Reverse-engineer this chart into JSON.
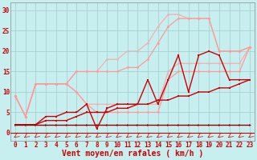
{
  "background_color": "#c8efef",
  "grid_color": "#a8d0d0",
  "xlabel": "Vent moyen/en rafales ( km/h )",
  "xlabel_color": "#cc0000",
  "xlabel_fontsize": 7,
  "tick_color": "#cc0000",
  "tick_fontsize": 5.5,
  "ylim": [
    -2,
    32
  ],
  "xlim": [
    -0.5,
    23.5
  ],
  "yticks": [
    0,
    5,
    10,
    15,
    20,
    25,
    30
  ],
  "xticks": [
    0,
    1,
    2,
    3,
    4,
    5,
    6,
    7,
    8,
    9,
    10,
    11,
    12,
    13,
    14,
    15,
    16,
    17,
    18,
    19,
    20,
    21,
    22,
    23
  ],
  "series": [
    {
      "x": [
        0,
        1,
        2,
        3,
        4,
        5,
        6,
        7,
        8,
        9,
        10,
        11,
        12,
        13,
        14,
        15,
        16,
        17,
        18,
        19,
        20,
        21,
        22,
        23
      ],
      "y": [
        9,
        4,
        12,
        12,
        12,
        12,
        15,
        15,
        15,
        18,
        18,
        20,
        20,
        22,
        26,
        29,
        29,
        28,
        28,
        28,
        20,
        20,
        20,
        21
      ],
      "color": "#ffaaaa",
      "lw": 0.9,
      "marker": "D",
      "ms": 1.8,
      "zorder": 1
    },
    {
      "x": [
        0,
        1,
        2,
        3,
        4,
        5,
        6,
        7,
        8,
        9,
        10,
        11,
        12,
        13,
        14,
        15,
        16,
        17,
        18,
        19,
        20,
        21,
        22,
        23
      ],
      "y": [
        9,
        4,
        12,
        12,
        12,
        12,
        10,
        7,
        7,
        7,
        7,
        7,
        7,
        7,
        7,
        15,
        17,
        17,
        17,
        17,
        17,
        17,
        17,
        21
      ],
      "color": "#ffaaaa",
      "lw": 0.9,
      "marker": "D",
      "ms": 1.8,
      "zorder": 1
    },
    {
      "x": [
        0,
        1,
        2,
        3,
        4,
        5,
        6,
        7,
        8,
        9,
        10,
        11,
        12,
        13,
        14,
        15,
        16,
        17,
        18,
        19,
        20,
        21,
        22,
        23
      ],
      "y": [
        9,
        4,
        12,
        12,
        12,
        12,
        15,
        15,
        15,
        15,
        15,
        16,
        16,
        18,
        22,
        26,
        28,
        28,
        28,
        28,
        20,
        20,
        20,
        21
      ],
      "color": "#ff9999",
      "lw": 0.9,
      "marker": "D",
      "ms": 1.8,
      "zorder": 2
    },
    {
      "x": [
        0,
        1,
        2,
        3,
        4,
        5,
        6,
        7,
        8,
        9,
        10,
        11,
        12,
        13,
        14,
        15,
        16,
        17,
        18,
        19,
        20,
        21,
        22,
        23
      ],
      "y": [
        9,
        4,
        12,
        12,
        12,
        12,
        10,
        7,
        5,
        5,
        5,
        5,
        5,
        5,
        5,
        13,
        15,
        15,
        15,
        15,
        15,
        15,
        15,
        21
      ],
      "color": "#ff9999",
      "lw": 0.9,
      "marker": "D",
      "ms": 1.8,
      "zorder": 2
    },
    {
      "x": [
        0,
        1,
        2,
        3,
        4,
        5,
        6,
        7,
        8,
        9,
        10,
        11,
        12,
        13,
        14,
        15,
        16,
        17,
        18,
        19,
        20,
        21,
        22,
        23
      ],
      "y": [
        2,
        2,
        2,
        4,
        4,
        5,
        5,
        7,
        1,
        6,
        7,
        7,
        7,
        13,
        7,
        13,
        19,
        10,
        19,
        20,
        19,
        13,
        13,
        13
      ],
      "color": "#cc0000",
      "lw": 1.0,
      "marker": "s",
      "ms": 2.0,
      "zorder": 5
    },
    {
      "x": [
        0,
        1,
        2,
        3,
        4,
        5,
        6,
        7,
        8,
        9,
        10,
        11,
        12,
        13,
        14,
        15,
        16,
        17,
        18,
        19,
        20,
        21,
        22,
        23
      ],
      "y": [
        2,
        2,
        2,
        3,
        3,
        3,
        4,
        5,
        5,
        5,
        6,
        6,
        7,
        7,
        8,
        8,
        9,
        9,
        10,
        10,
        11,
        11,
        12,
        13
      ],
      "color": "#cc0000",
      "lw": 1.0,
      "marker": "s",
      "ms": 2.0,
      "zorder": 5
    },
    {
      "x": [
        0,
        1,
        2,
        3,
        4,
        5,
        6,
        7,
        8,
        9,
        10,
        11,
        12,
        13,
        14,
        15,
        16,
        17,
        18,
        19,
        20,
        21,
        22,
        23
      ],
      "y": [
        2,
        2,
        2,
        2,
        2,
        2,
        2,
        2,
        2,
        2,
        2,
        2,
        2,
        2,
        2,
        2,
        2,
        2,
        2,
        2,
        2,
        2,
        2,
        2
      ],
      "color": "#990000",
      "lw": 1.0,
      "marker": ">",
      "ms": 2.0,
      "zorder": 5
    }
  ]
}
